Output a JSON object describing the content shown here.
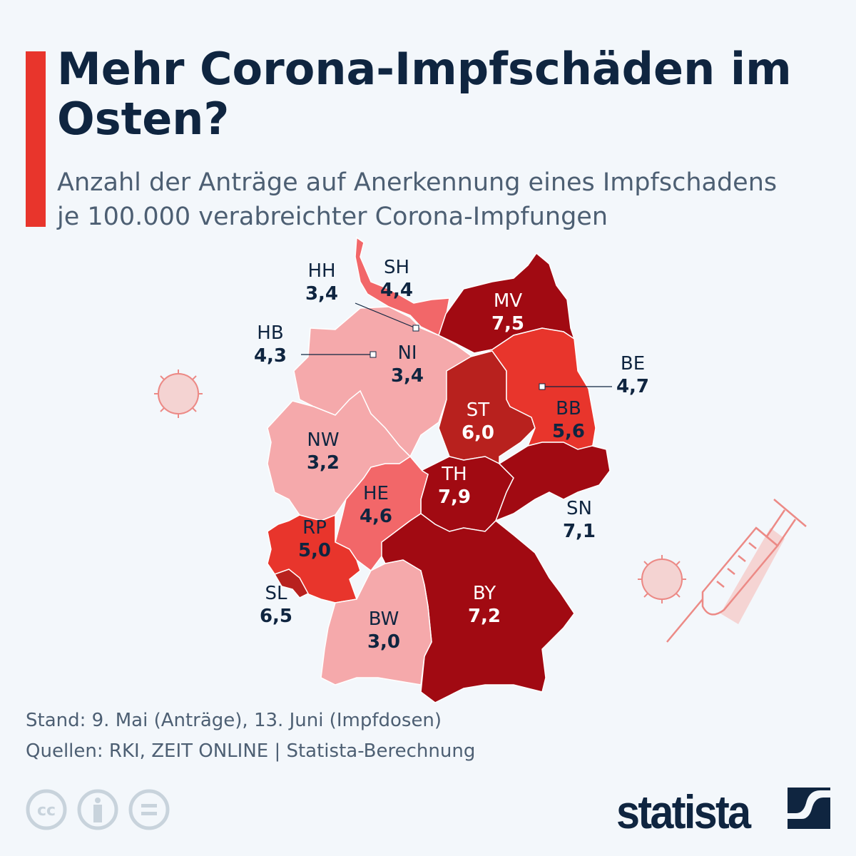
{
  "title": "Mehr Corona-Impfschäden im Osten?",
  "subtitle_line1": "Anzahl der Anträge auf Anerkennung eines Impfschadens",
  "subtitle_line2": "je 100.000 verabreichter Corona-Impfungen",
  "colors": {
    "accent": "#e8352c",
    "text": "#0f2540",
    "scale": [
      "#f5a9ab",
      "#f26769",
      "#e8352c",
      "#b8211e",
      "#a10a12"
    ]
  },
  "states": [
    {
      "code": "SH",
      "value": "4,4"
    },
    {
      "code": "HH",
      "value": "3,4"
    },
    {
      "code": "MV",
      "value": "7,5"
    },
    {
      "code": "HB",
      "value": "4,3"
    },
    {
      "code": "NI",
      "value": "3,4"
    },
    {
      "code": "BE",
      "value": "4,7"
    },
    {
      "code": "ST",
      "value": "6,0"
    },
    {
      "code": "BB",
      "value": "5,6"
    },
    {
      "code": "NW",
      "value": "3,2"
    },
    {
      "code": "TH",
      "value": "7,9"
    },
    {
      "code": "HE",
      "value": "4,6"
    },
    {
      "code": "SN",
      "value": "7,1"
    },
    {
      "code": "RP",
      "value": "5,0"
    },
    {
      "code": "SL",
      "value": "6,5"
    },
    {
      "code": "BY",
      "value": "7,2"
    },
    {
      "code": "BW",
      "value": "3,0"
    }
  ],
  "footer": {
    "stand": "Stand: 9. Mai (Anträge), 13. Juni (Impfdosen)",
    "sources": "Quellen: RKI, ZEIT ONLINE | Statista-Berechnung"
  },
  "license_icons": [
    "cc-icon",
    "attribution-icon",
    "no-derivatives-icon"
  ],
  "logo": "statista"
}
